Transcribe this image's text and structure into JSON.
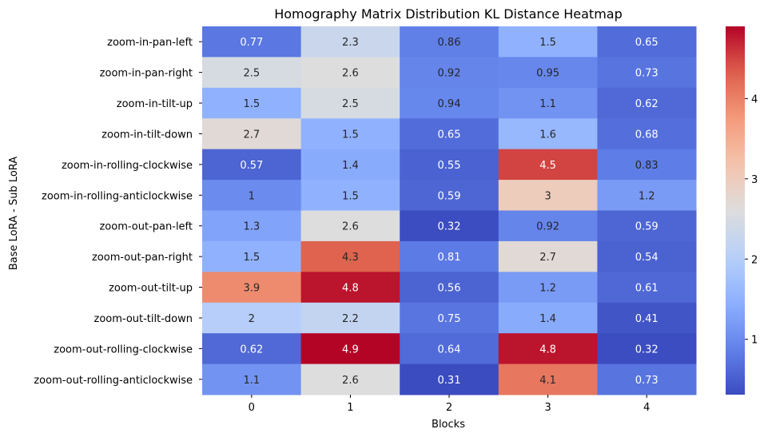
{
  "chart_data": {
    "type": "heatmap",
    "title": "Homography Matrix Distribution KL Distance Heatmap",
    "xlabel": "Blocks",
    "ylabel": "Base LoRA - Sub LoRA",
    "x_categories": [
      "0",
      "1",
      "2",
      "3",
      "4"
    ],
    "y_categories": [
      "zoom-in-pan-left",
      "zoom-in-pan-right",
      "zoom-in-tilt-up",
      "zoom-in-tilt-down",
      "zoom-in-rolling-clockwise",
      "zoom-in-rolling-anticlockwise",
      "zoom-out-pan-left",
      "zoom-out-pan-right",
      "zoom-out-tilt-up",
      "zoom-out-tilt-down",
      "zoom-out-rolling-clockwise",
      "zoom-out-rolling-anticlockwise"
    ],
    "values": [
      [
        0.77,
        2.3,
        0.86,
        1.5,
        0.65
      ],
      [
        2.5,
        2.6,
        0.92,
        0.95,
        0.73
      ],
      [
        1.5,
        2.5,
        0.94,
        1.1,
        0.62
      ],
      [
        2.7,
        1.5,
        0.65,
        1.6,
        0.68
      ],
      [
        0.57,
        1.4,
        0.55,
        4.5,
        0.83
      ],
      [
        1,
        1.5,
        0.59,
        3,
        1.2
      ],
      [
        1.3,
        2.6,
        0.32,
        0.92,
        0.59
      ],
      [
        1.5,
        4.3,
        0.81,
        2.7,
        0.54
      ],
      [
        3.9,
        4.8,
        0.56,
        1.2,
        0.61
      ],
      [
        2,
        2.2,
        0.75,
        1.4,
        0.41
      ],
      [
        0.62,
        4.9,
        0.64,
        4.8,
        0.32
      ],
      [
        1.1,
        2.6,
        0.31,
        4.1,
        0.73
      ]
    ],
    "labels": [
      [
        "0.77",
        "2.3",
        "0.86",
        "1.5",
        "0.65"
      ],
      [
        "2.5",
        "2.6",
        "0.92",
        "0.95",
        "0.73"
      ],
      [
        "1.5",
        "2.5",
        "0.94",
        "1.1",
        "0.62"
      ],
      [
        "2.7",
        "1.5",
        "0.65",
        "1.6",
        "0.68"
      ],
      [
        "0.57",
        "1.4",
        "0.55",
        "4.5",
        "0.83"
      ],
      [
        "1",
        "1.5",
        "0.59",
        "3",
        "1.2"
      ],
      [
        "1.3",
        "2.6",
        "0.32",
        "0.92",
        "0.59"
      ],
      [
        "1.5",
        "4.3",
        "0.81",
        "2.7",
        "0.54"
      ],
      [
        "3.9",
        "4.8",
        "0.56",
        "1.2",
        "0.61"
      ],
      [
        "2",
        "2.2",
        "0.75",
        "1.4",
        "0.41"
      ],
      [
        "0.62",
        "4.9",
        "0.64",
        "4.8",
        "0.32"
      ],
      [
        "1.1",
        "2.6",
        "0.31",
        "4.1",
        "0.73"
      ]
    ],
    "colorscale": "coolwarm",
    "vmin": 0.31,
    "vmax": 4.9,
    "colorbar_ticks": [
      1,
      2,
      3,
      4
    ],
    "colorbar_tick_labels": [
      "1",
      "2",
      "3",
      "4"
    ],
    "grid": false
  }
}
